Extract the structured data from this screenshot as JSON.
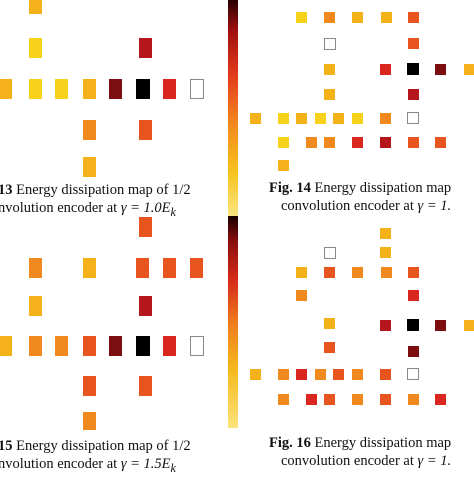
{
  "figures": [
    {
      "id": "13",
      "fig_label": "13",
      "caption_line1": "Energy dissipation map of 1/2",
      "caption_line2": "nvolution encoder at",
      "gamma": "γ = 1.0E",
      "sub": "k"
    },
    {
      "id": "14",
      "fig_label": "Fig. 14",
      "caption_line1": "Energy dissipation map",
      "caption_line2": "convolution encoder at",
      "gamma": "γ = 1.",
      "sub": ""
    },
    {
      "id": "15",
      "fig_label": "15",
      "caption_line1": "Energy dissipation map of 1/2",
      "caption_line2": "nvolution encoder at",
      "gamma": "γ = 1.5E",
      "sub": "k"
    },
    {
      "id": "16",
      "fig_label": "Fig. 16",
      "caption_line1": "Energy dissipation map",
      "caption_line2": "convolution encoder at",
      "gamma": "γ = 1.",
      "sub": ""
    }
  ],
  "colors": {
    "yellow": "#f6d21a",
    "gold": "#f4b119",
    "orange": "#f08a1f",
    "red_orange": "#e8541e",
    "red": "#d9261f",
    "crimson": "#b4161b",
    "dark_red": "#7c0d10",
    "black": "#000000"
  }
}
